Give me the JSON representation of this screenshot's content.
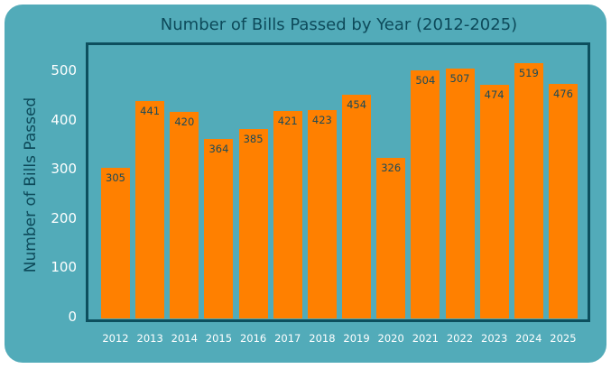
{
  "chart_data": {
    "type": "bar",
    "title": "Number of Bills Passed by Year (2012-2025)",
    "xlabel": "",
    "ylabel": "Number of Bills Passed",
    "categories": [
      "2012",
      "2013",
      "2014",
      "2015",
      "2016",
      "2017",
      "2018",
      "2019",
      "2020",
      "2021",
      "2022",
      "2023",
      "2024",
      "2025"
    ],
    "values": [
      305,
      441,
      420,
      364,
      385,
      421,
      423,
      454,
      326,
      504,
      507,
      474,
      519,
      476
    ],
    "yticks": [
      0,
      100,
      200,
      300,
      400,
      500
    ],
    "ylim": [
      0,
      557
    ],
    "grid": false,
    "colors": {
      "bar": "#ff8000",
      "background": "#52abb9",
      "axis": "#0d4f5e",
      "label": "#1b4a5a"
    }
  }
}
